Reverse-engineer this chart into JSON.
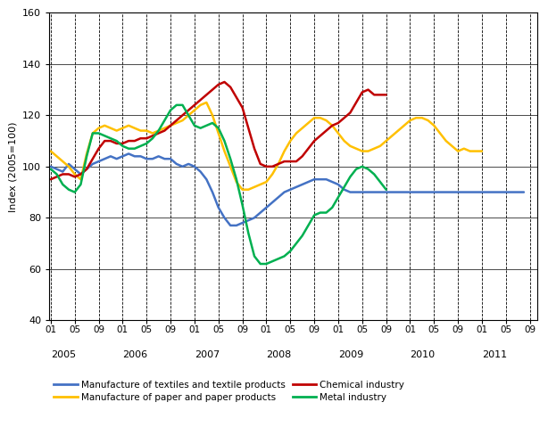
{
  "ylabel": "Index (2005=100)",
  "ylim": [
    40,
    160
  ],
  "yticks": [
    40,
    60,
    80,
    100,
    120,
    140,
    160
  ],
  "background_color": "#ffffff",
  "series": {
    "textiles": {
      "label": "Manufacture of textiles and textile products",
      "color": "#4472c4",
      "data": [
        100,
        99,
        98,
        101,
        99,
        97,
        99,
        101,
        102,
        103,
        104,
        103,
        104,
        105,
        104,
        104,
        103,
        103,
        104,
        103,
        103,
        101,
        100,
        101,
        100,
        98,
        95,
        90,
        84,
        80,
        77,
        77,
        78,
        79,
        80,
        82,
        84,
        86,
        88,
        90,
        91,
        92,
        93,
        94,
        95,
        95,
        95,
        94,
        93,
        91,
        90,
        90,
        90,
        90,
        90,
        90,
        90,
        90,
        90,
        90,
        90,
        90,
        90,
        90,
        90,
        90,
        90,
        90,
        90,
        90,
        90,
        90,
        90,
        90,
        90,
        90,
        90,
        90,
        90,
        90
      ]
    },
    "paper": {
      "label": "Manufacture of paper and paper products",
      "color": "#ffc000",
      "data": [
        106,
        104,
        102,
        100,
        97,
        95,
        105,
        113,
        115,
        116,
        115,
        114,
        115,
        116,
        115,
        114,
        114,
        113,
        114,
        115,
        116,
        117,
        118,
        120,
        122,
        124,
        125,
        120,
        113,
        106,
        100,
        94,
        91,
        91,
        92,
        93,
        94,
        97,
        101,
        106,
        110,
        113,
        115,
        117,
        119,
        119,
        118,
        116,
        113,
        110,
        108,
        107,
        106,
        106,
        107,
        108,
        110,
        112,
        114,
        116,
        118,
        119,
        119,
        118,
        116,
        113,
        110,
        108,
        106,
        107,
        106,
        106,
        106
      ]
    },
    "chemical": {
      "label": "Chemical industry",
      "color": "#c00000",
      "data": [
        95,
        96,
        97,
        97,
        96,
        97,
        99,
        103,
        107,
        110,
        110,
        109,
        109,
        110,
        110,
        111,
        111,
        112,
        113,
        114,
        116,
        118,
        120,
        122,
        124,
        126,
        128,
        130,
        132,
        133,
        131,
        127,
        123,
        115,
        107,
        101,
        100,
        100,
        101,
        102,
        102,
        102,
        104,
        107,
        110,
        112,
        114,
        116,
        117,
        119,
        121,
        125,
        129,
        130,
        128,
        128,
        128
      ]
    },
    "metal": {
      "label": "Metal industry",
      "color": "#00b050",
      "data": [
        99,
        97,
        93,
        91,
        90,
        93,
        104,
        113,
        113,
        112,
        111,
        110,
        108,
        107,
        107,
        108,
        109,
        111,
        114,
        118,
        122,
        124,
        124,
        120,
        116,
        115,
        116,
        117,
        115,
        110,
        103,
        95,
        85,
        74,
        65,
        62,
        62,
        63,
        64,
        65,
        67,
        70,
        73,
        77,
        81,
        82,
        82,
        84,
        88,
        92,
        96,
        99,
        100,
        99,
        97,
        94,
        91
      ]
    }
  },
  "xtick_months": [
    1,
    5,
    9
  ],
  "years": [
    2005,
    2006,
    2007,
    2008,
    2009,
    2010,
    2011
  ],
  "end_year": 2011,
  "end_month": 9,
  "figsize": [
    6.14,
    4.79
  ],
  "dpi": 100
}
